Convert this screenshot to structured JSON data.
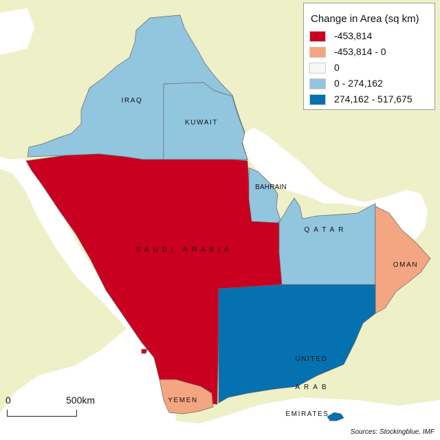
{
  "legend": {
    "title": "Change in Area (sq km)",
    "items": [
      {
        "label": "-453,814",
        "color": "#ca0020"
      },
      {
        "label": "-453,814 - 0",
        "color": "#f4a582"
      },
      {
        "label": "0",
        "color": "#f7f7f7"
      },
      {
        "label": "0 - 274,162",
        "color": "#92c5de"
      },
      {
        "label": "274,162 - 517,675",
        "color": "#0571b0"
      }
    ]
  },
  "regions": [
    {
      "label": "IRAQ",
      "class": "0 - 274,162"
    },
    {
      "label": "KUWAIT",
      "class": "0 - 274,162"
    },
    {
      "label": "BAHRAIN",
      "class": "0 - 274,162"
    },
    {
      "label": "QATAR",
      "class": "0 - 274,162"
    },
    {
      "label": "SAUDI ARABIA",
      "class": "-453,814"
    },
    {
      "label": "OMAN",
      "class": "-453,814 - 0"
    },
    {
      "label": "YEMEN",
      "class": "-453,814 - 0"
    },
    {
      "label_lines": [
        "UNITED",
        "ARAB",
        "EMIRATES"
      ],
      "class": "274,162 - 517,675"
    }
  ],
  "scale": {
    "start_label": "0",
    "end_label": "500km"
  },
  "sources": "Sources: Stockingblue, IMF",
  "colors": {
    "land": "#eef0c8",
    "water": "#ffffff",
    "border": "#b8b8a0"
  }
}
